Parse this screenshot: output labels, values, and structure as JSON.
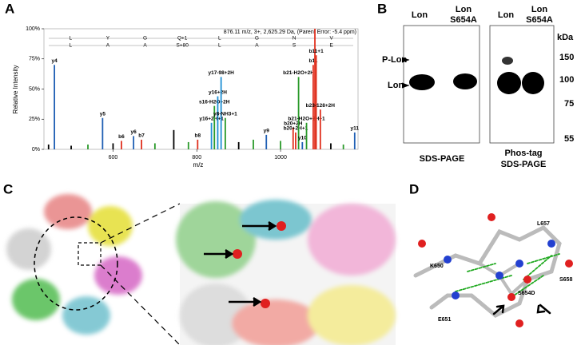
{
  "panel_labels": [
    "A",
    "B",
    "C",
    "D"
  ],
  "chart_data": {
    "type": "spectrum",
    "header": "876.11 m/z, 3+, 2,625.29 Da, (Parent Error: -5.4 ppm)",
    "sequence_top": [
      "L",
      "Y",
      "G",
      "Q+1",
      "L",
      "G",
      "N",
      "V"
    ],
    "sequence_bottom": [
      "L",
      "A",
      "A",
      "S+80",
      "L",
      "A",
      "S",
      "E"
    ],
    "x_label": "m/z",
    "y_label": "Relative Intensity",
    "x": [
      446,
      460,
      500,
      540,
      575,
      600,
      620,
      649,
      668,
      700,
      745,
      780,
      802,
      835,
      842,
      850,
      858,
      868,
      900,
      935,
      966,
      1000,
      1030,
      1036,
      1043,
      1052,
      1062,
      1078,
      1082,
      1085,
      1095,
      1120,
      1150,
      1177
    ],
    "values": [
      4,
      70,
      3,
      4,
      26,
      5,
      7,
      11,
      8,
      5,
      16,
      6,
      8,
      22,
      36,
      44,
      60,
      26,
      6,
      8,
      12,
      7,
      18,
      14,
      60,
      6,
      22,
      70,
      100,
      78,
      33,
      5,
      4,
      14
    ],
    "colors": [
      "#000",
      "#1f5fb4",
      "#000",
      "#2a9a2a",
      "#1f5fb4",
      "#000",
      "#e0301e",
      "#1f5fb4",
      "#e0301e",
      "#2a9a2a",
      "#000",
      "#2a9a2a",
      "#e0301e",
      "#1f8fd4",
      "#2a9a2a",
      "#1f8fd4",
      "#1f8fd4",
      "#2a9a2a",
      "#000",
      "#2a9a2a",
      "#1f5fb4",
      "#2a9a2a",
      "#e0301e",
      "#e0301e",
      "#2a9a2a",
      "#1f5fb4",
      "#2a9a2a",
      "#e0301e",
      "#e0301e",
      "#e0301e",
      "#e0301e",
      "#000",
      "#2a9a2a",
      "#1f5fb4"
    ],
    "labels": [
      null,
      "y4",
      null,
      null,
      "y5",
      null,
      "b6",
      "y6",
      "b7",
      null,
      null,
      null,
      "b8",
      "y16+2H+1",
      "s16-H2O+2H",
      "y16+2H",
      "y17-98+2H",
      "y8-NH3+1",
      null,
      null,
      "y9",
      null,
      "b20+2H",
      "b20+2H+1",
      "b21-H2O+2H",
      "y10",
      "b21-H2O+2H+1",
      "b11",
      null,
      "b11+1",
      "b23-128+2H",
      null,
      null,
      "y11"
    ],
    "xlim": [
      435,
      1185
    ],
    "xticks": [
      600,
      800,
      1000
    ],
    "ylim": [
      0,
      100
    ],
    "yticks": [
      {
        "value": 0,
        "label": "0%"
      },
      {
        "value": 25,
        "label": "25%"
      },
      {
        "value": 50,
        "label": "50%"
      },
      {
        "value": 75,
        "label": "75%"
      },
      {
        "value": 100,
        "label": "100%"
      }
    ]
  },
  "gel": {
    "lanes_left": [
      "Lon",
      "Lon",
      "S654A"
    ],
    "lanes_right": [
      "Lon",
      "Lon",
      "S654A"
    ],
    "band_labels": [
      "P-Lon",
      "Lon"
    ],
    "caption_left": "SDS-PAGE",
    "caption_right": [
      "Phos-tag",
      "SDS-PAGE"
    ],
    "marker_unit": "kDa",
    "markers": [
      150,
      100,
      75,
      55
    ]
  },
  "structure": {
    "residues": [
      "L657",
      "K650",
      "S654D",
      "S658",
      "E651"
    ]
  }
}
